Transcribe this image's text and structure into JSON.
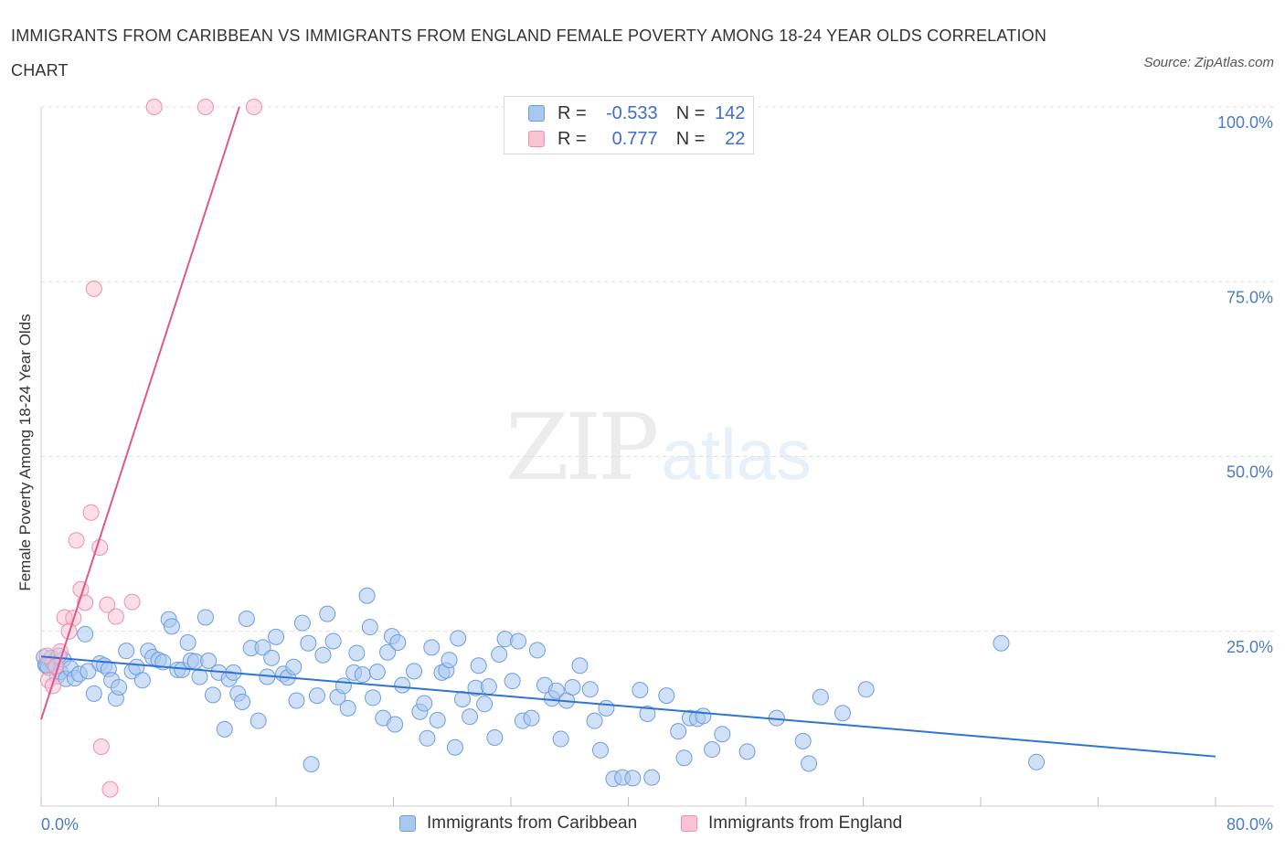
{
  "title": "IMMIGRANTS FROM CARIBBEAN VS IMMIGRANTS FROM ENGLAND FEMALE POVERTY AMONG 18-24 YEAR OLDS CORRELATION CHART",
  "source": "Source: ZipAtlas.com",
  "watermark": {
    "zip": "ZIP",
    "atlas": "atlas"
  },
  "legend_stats": [
    {
      "r_label": "R =",
      "r_value": "-0.533",
      "n_label": "N =",
      "n_value": "142",
      "color": "#a9c8f0",
      "border": "#6d9ddf"
    },
    {
      "r_label": "R =",
      "r_value": "0.777",
      "n_label": "N =",
      "n_value": "22",
      "color": "#f9c3d3",
      "border": "#ee8fab"
    }
  ],
  "chart_data": {
    "type": "scatter",
    "title": "IMMIGRANTS FROM CARIBBEAN VS IMMIGRANTS FROM ENGLAND FEMALE POVERTY AMONG 18-24 YEAR OLDS CORRELATION CHART",
    "xlabel": "",
    "ylabel": "Female Poverty Among 18-24 Year Olds",
    "xlim": [
      0,
      80
    ],
    "ylim": [
      0,
      100
    ],
    "x_tick_labels": [
      "0.0%",
      "80.0%"
    ],
    "y_ticks": [
      25,
      50,
      75,
      100
    ],
    "y_tick_labels": [
      "25.0%",
      "50.0%",
      "75.0%",
      "100.0%"
    ],
    "grid": true,
    "legend_position": "bottom",
    "series": [
      {
        "name": "Immigrants from Caribbean",
        "color": "#a9c8f0",
        "edge": "#6d9ddf",
        "trend_color": "#2f74d0",
        "trend": {
          "x": [
            0,
            80
          ],
          "y": [
            21.4,
            7.1
          ]
        },
        "points": [
          [
            0.2,
            21.3
          ],
          [
            0.3,
            20.2
          ],
          [
            0.5,
            19.8
          ],
          [
            0.7,
            21.2
          ],
          [
            0.8,
            20.5
          ],
          [
            1.0,
            20.0
          ],
          [
            1.1,
            18.6
          ],
          [
            1.3,
            19.2
          ],
          [
            1.5,
            21.0
          ],
          [
            1.7,
            18.2
          ],
          [
            2.0,
            19.7
          ],
          [
            2.3,
            18.3
          ],
          [
            2.6,
            18.9
          ],
          [
            3.0,
            24.6
          ],
          [
            3.2,
            19.3
          ],
          [
            3.6,
            16.1
          ],
          [
            4.0,
            20.4
          ],
          [
            4.3,
            20.1
          ],
          [
            4.6,
            19.6
          ],
          [
            4.8,
            18.0
          ],
          [
            5.1,
            15.4
          ],
          [
            5.3,
            17.0
          ],
          [
            5.8,
            22.2
          ],
          [
            6.2,
            19.3
          ],
          [
            6.5,
            19.9
          ],
          [
            6.9,
            18.0
          ],
          [
            7.3,
            22.2
          ],
          [
            7.6,
            21.3
          ],
          [
            8.0,
            20.9
          ],
          [
            8.3,
            20.6
          ],
          [
            8.7,
            26.7
          ],
          [
            8.9,
            25.7
          ],
          [
            9.3,
            19.5
          ],
          [
            9.6,
            19.5
          ],
          [
            10.0,
            23.4
          ],
          [
            10.2,
            20.8
          ],
          [
            10.5,
            20.7
          ],
          [
            10.8,
            18.5
          ],
          [
            11.2,
            27.0
          ],
          [
            11.4,
            20.8
          ],
          [
            11.7,
            15.9
          ],
          [
            12.1,
            19.1
          ],
          [
            12.5,
            11.0
          ],
          [
            12.8,
            18.2
          ],
          [
            13.1,
            19.1
          ],
          [
            13.4,
            16.1
          ],
          [
            13.7,
            14.9
          ],
          [
            14.0,
            26.8
          ],
          [
            14.3,
            22.6
          ],
          [
            14.8,
            12.2
          ],
          [
            15.1,
            22.7
          ],
          [
            15.4,
            18.5
          ],
          [
            15.7,
            21.2
          ],
          [
            16.0,
            24.2
          ],
          [
            16.5,
            18.9
          ],
          [
            16.8,
            18.4
          ],
          [
            17.2,
            19.9
          ],
          [
            17.4,
            15.1
          ],
          [
            17.8,
            26.2
          ],
          [
            18.2,
            23.3
          ],
          [
            18.4,
            6.0
          ],
          [
            18.8,
            15.8
          ],
          [
            19.2,
            21.6
          ],
          [
            19.5,
            27.5
          ],
          [
            19.9,
            23.6
          ],
          [
            20.2,
            15.6
          ],
          [
            20.6,
            17.2
          ],
          [
            20.9,
            14.0
          ],
          [
            21.3,
            19.1
          ],
          [
            21.5,
            21.9
          ],
          [
            21.9,
            18.8
          ],
          [
            22.2,
            30.1
          ],
          [
            22.4,
            25.6
          ],
          [
            22.6,
            15.5
          ],
          [
            22.9,
            19.2
          ],
          [
            23.3,
            12.6
          ],
          [
            23.6,
            22.0
          ],
          [
            23.9,
            24.3
          ],
          [
            24.1,
            11.7
          ],
          [
            24.3,
            23.4
          ],
          [
            24.6,
            17.3
          ],
          [
            25.4,
            19.3
          ],
          [
            25.8,
            13.5
          ],
          [
            26.1,
            14.7
          ],
          [
            26.3,
            9.7
          ],
          [
            26.6,
            22.7
          ],
          [
            27.0,
            12.3
          ],
          [
            27.3,
            19.1
          ],
          [
            27.6,
            19.4
          ],
          [
            27.8,
            20.9
          ],
          [
            28.2,
            8.4
          ],
          [
            28.4,
            24.0
          ],
          [
            28.7,
            15.3
          ],
          [
            29.2,
            12.8
          ],
          [
            29.6,
            16.9
          ],
          [
            29.8,
            20.1
          ],
          [
            30.2,
            14.6
          ],
          [
            30.5,
            17.1
          ],
          [
            30.9,
            9.8
          ],
          [
            31.2,
            21.7
          ],
          [
            31.6,
            23.9
          ],
          [
            32.1,
            17.9
          ],
          [
            32.5,
            23.6
          ],
          [
            32.8,
            12.2
          ],
          [
            33.4,
            12.6
          ],
          [
            33.8,
            22.3
          ],
          [
            34.3,
            17.3
          ],
          [
            34.8,
            15.4
          ],
          [
            35.1,
            16.5
          ],
          [
            35.4,
            9.6
          ],
          [
            35.8,
            15.1
          ],
          [
            36.2,
            17.0
          ],
          [
            36.7,
            20.1
          ],
          [
            37.4,
            16.7
          ],
          [
            37.7,
            12.2
          ],
          [
            38.1,
            8.0
          ],
          [
            38.5,
            14.0
          ],
          [
            39.0,
            3.9
          ],
          [
            39.6,
            4.1
          ],
          [
            40.3,
            4.0
          ],
          [
            40.8,
            16.6
          ],
          [
            41.3,
            13.2
          ],
          [
            41.6,
            4.1
          ],
          [
            42.6,
            15.8
          ],
          [
            43.4,
            10.7
          ],
          [
            43.8,
            6.9
          ],
          [
            44.2,
            12.6
          ],
          [
            44.7,
            12.5
          ],
          [
            45.1,
            12.9
          ],
          [
            45.7,
            8.1
          ],
          [
            46.4,
            10.3
          ],
          [
            48.1,
            7.8
          ],
          [
            50.1,
            12.6
          ],
          [
            51.9,
            9.3
          ],
          [
            52.3,
            6.1
          ],
          [
            53.1,
            15.6
          ],
          [
            54.6,
            13.3
          ],
          [
            56.2,
            16.7
          ],
          [
            65.4,
            23.3
          ],
          [
            67.8,
            6.3
          ],
          [
            0.4,
            20.1
          ],
          [
            1.2,
            21.5
          ]
        ]
      },
      {
        "name": "Immigrants from England",
        "color": "#f9c3d3",
        "edge": "#ee8fab",
        "trend_color": "#e0588a",
        "trend": {
          "x": [
            0,
            13.5
          ],
          "y": [
            12.4,
            100
          ]
        },
        "points": [
          [
            7.7,
            100
          ],
          [
            11.2,
            100
          ],
          [
            14.5,
            100
          ],
          [
            3.6,
            74.0
          ],
          [
            3.4,
            42.0
          ],
          [
            2.4,
            38.0
          ],
          [
            4.0,
            37.0
          ],
          [
            2.7,
            31.0
          ],
          [
            6.2,
            29.2
          ],
          [
            4.5,
            28.8
          ],
          [
            3.0,
            29.1
          ],
          [
            1.6,
            27.0
          ],
          [
            2.2,
            26.9
          ],
          [
            5.1,
            27.1
          ],
          [
            1.9,
            25.0
          ],
          [
            1.3,
            22.1
          ],
          [
            0.4,
            21.5
          ],
          [
            1.0,
            20.0
          ],
          [
            0.5,
            18.0
          ],
          [
            0.8,
            17.2
          ],
          [
            4.1,
            8.5
          ],
          [
            4.7,
            2.4
          ]
        ]
      }
    ]
  }
}
